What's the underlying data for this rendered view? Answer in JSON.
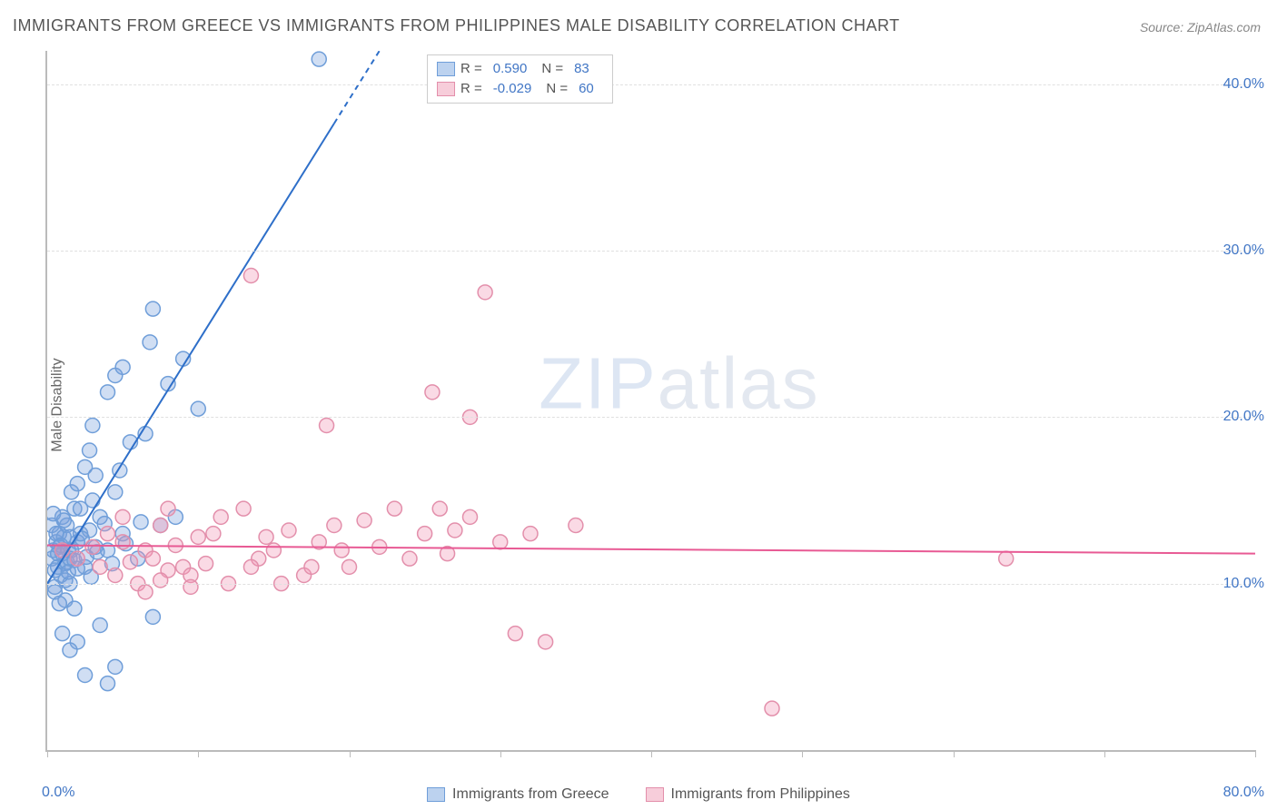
{
  "title": "IMMIGRANTS FROM GREECE VS IMMIGRANTS FROM PHILIPPINES MALE DISABILITY CORRELATION CHART",
  "source": "Source: ZipAtlas.com",
  "watermark": {
    "left": "ZIP",
    "right": "atlas"
  },
  "ylabel": "Male Disability",
  "chart": {
    "type": "scatter-with-trend",
    "background_color": "#ffffff",
    "grid_color": "#e0e0e0",
    "axis_color": "#bbbbbb",
    "label_color": "#666666",
    "tick_label_color": "#4176c5",
    "marker_radius": 8,
    "marker_stroke_width": 1.5,
    "trend_line_width": 2,
    "xlim": [
      0,
      80
    ],
    "ylim": [
      0,
      42
    ],
    "ytick_values": [
      10,
      20,
      30,
      40
    ],
    "ytick_labels": [
      "10.0%",
      "20.0%",
      "30.0%",
      "40.0%"
    ],
    "xtick_positions": [
      0,
      10,
      20,
      30,
      40,
      50,
      60,
      70,
      80
    ],
    "xtick_labels": {
      "0": "0.0%",
      "80": "80.0%"
    },
    "series": [
      {
        "name": "Immigrants from Greece",
        "fill_color": "rgba(120,160,220,0.35)",
        "stroke_color": "#6f9ed9",
        "trend_color": "#2e6fc9",
        "swatch_fill": "#bcd2ef",
        "swatch_border": "#6f9ed9",
        "R": "0.590",
        "N": "83",
        "trend": {
          "x1": 0,
          "y1": 10,
          "x2": 22,
          "y2": 42,
          "dashed_from_x": 19
        },
        "points": [
          [
            0.3,
            11.5
          ],
          [
            0.4,
            12.0
          ],
          [
            0.5,
            10.8
          ],
          [
            0.5,
            9.5
          ],
          [
            0.6,
            12.5
          ],
          [
            0.7,
            11.0
          ],
          [
            0.8,
            13.0
          ],
          [
            0.8,
            12.2
          ],
          [
            0.9,
            10.5
          ],
          [
            1.0,
            11.8
          ],
          [
            1.0,
            14.0
          ],
          [
            1.1,
            12.8
          ],
          [
            1.2,
            11.2
          ],
          [
            1.2,
            9.0
          ],
          [
            1.3,
            13.5
          ],
          [
            1.4,
            12.0
          ],
          [
            1.5,
            10.0
          ],
          [
            1.5,
            11.5
          ],
          [
            1.6,
            15.5
          ],
          [
            1.8,
            14.5
          ],
          [
            2.0,
            12.5
          ],
          [
            2.0,
            16.0
          ],
          [
            2.2,
            13.0
          ],
          [
            2.5,
            17.0
          ],
          [
            2.5,
            11.0
          ],
          [
            2.8,
            18.0
          ],
          [
            3.0,
            15.0
          ],
          [
            3.0,
            19.5
          ],
          [
            3.2,
            16.5
          ],
          [
            3.5,
            14.0
          ],
          [
            4.0,
            21.5
          ],
          [
            4.0,
            12.0
          ],
          [
            4.5,
            22.5
          ],
          [
            4.5,
            15.5
          ],
          [
            5.0,
            23.0
          ],
          [
            5.0,
            13.0
          ],
          [
            5.5,
            18.5
          ],
          [
            6.0,
            11.5
          ],
          [
            6.5,
            19.0
          ],
          [
            7.0,
            26.5
          ],
          [
            7.5,
            13.5
          ],
          [
            8.0,
            22.0
          ],
          [
            8.5,
            14.0
          ],
          [
            9.0,
            23.5
          ],
          [
            10.0,
            20.5
          ],
          [
            7.0,
            8.0
          ],
          [
            3.5,
            7.5
          ],
          [
            4.0,
            4.0
          ],
          [
            4.5,
            5.0
          ],
          [
            2.0,
            6.5
          ],
          [
            2.5,
            4.5
          ],
          [
            1.0,
            7.0
          ],
          [
            1.5,
            6.0
          ],
          [
            1.8,
            8.5
          ],
          [
            0.8,
            8.8
          ],
          [
            0.5,
            9.8
          ],
          [
            1.2,
            10.2
          ],
          [
            1.5,
            12.8
          ],
          [
            2.2,
            14.5
          ],
          [
            2.8,
            13.2
          ],
          [
            3.2,
            12.2
          ],
          [
            0.3,
            13.5
          ],
          [
            0.4,
            14.2
          ],
          [
            0.6,
            13.0
          ],
          [
            0.7,
            11.8
          ],
          [
            0.9,
            12.3
          ],
          [
            1.1,
            13.8
          ],
          [
            1.3,
            11.3
          ],
          [
            1.4,
            10.7
          ],
          [
            1.6,
            12.0
          ],
          [
            1.8,
            11.4
          ],
          [
            2.0,
            10.9
          ],
          [
            2.3,
            12.7
          ],
          [
            2.6,
            11.6
          ],
          [
            2.9,
            10.4
          ],
          [
            3.3,
            11.9
          ],
          [
            3.8,
            13.6
          ],
          [
            4.3,
            11.2
          ],
          [
            5.2,
            12.4
          ],
          [
            6.2,
            13.7
          ],
          [
            18.0,
            41.5
          ],
          [
            4.8,
            16.8
          ],
          [
            6.8,
            24.5
          ]
        ]
      },
      {
        "name": "Immigrants from Philippines",
        "fill_color": "rgba(240,150,180,0.35)",
        "stroke_color": "#e38fab",
        "trend_color": "#e85a94",
        "swatch_fill": "#f7cdda",
        "swatch_border": "#e38fab",
        "R": "-0.029",
        "N": "60",
        "trend": {
          "x1": 0,
          "y1": 12.3,
          "x2": 80,
          "y2": 11.8
        },
        "points": [
          [
            1.0,
            12.0
          ],
          [
            2.0,
            11.5
          ],
          [
            3.0,
            12.2
          ],
          [
            3.5,
            11.0
          ],
          [
            4.0,
            13.0
          ],
          [
            4.5,
            10.5
          ],
          [
            5.0,
            12.5
          ],
          [
            5.5,
            11.3
          ],
          [
            6.0,
            10.0
          ],
          [
            6.5,
            12.0
          ],
          [
            7.0,
            11.5
          ],
          [
            7.5,
            13.5
          ],
          [
            8.0,
            10.8
          ],
          [
            8.5,
            12.3
          ],
          [
            9.0,
            11.0
          ],
          [
            9.5,
            10.5
          ],
          [
            10.0,
            12.8
          ],
          [
            10.5,
            11.2
          ],
          [
            11.0,
            13.0
          ],
          [
            12.0,
            10.0
          ],
          [
            13.0,
            14.5
          ],
          [
            14.0,
            11.5
          ],
          [
            15.0,
            12.0
          ],
          [
            16.0,
            13.2
          ],
          [
            17.0,
            10.5
          ],
          [
            18.0,
            12.5
          ],
          [
            19.0,
            13.5
          ],
          [
            20.0,
            11.0
          ],
          [
            21.0,
            13.8
          ],
          [
            22.0,
            12.2
          ],
          [
            23.0,
            14.5
          ],
          [
            24.0,
            11.5
          ],
          [
            25.0,
            13.0
          ],
          [
            26.0,
            14.5
          ],
          [
            27.0,
            13.2
          ],
          [
            28.0,
            20.0
          ],
          [
            29.0,
            27.5
          ],
          [
            30.0,
            12.5
          ],
          [
            31.0,
            7.0
          ],
          [
            32.0,
            13.0
          ],
          [
            33.0,
            6.5
          ],
          [
            35.0,
            13.5
          ],
          [
            28.0,
            14.0
          ],
          [
            26.5,
            11.8
          ],
          [
            18.5,
            19.5
          ],
          [
            13.5,
            28.5
          ],
          [
            25.5,
            21.5
          ],
          [
            48.0,
            2.5
          ],
          [
            63.5,
            11.5
          ],
          [
            5.0,
            14.0
          ],
          [
            8.0,
            14.5
          ],
          [
            11.5,
            14.0
          ],
          [
            13.5,
            11.0
          ],
          [
            15.5,
            10.0
          ],
          [
            17.5,
            11.0
          ],
          [
            19.5,
            12.0
          ],
          [
            6.5,
            9.5
          ],
          [
            7.5,
            10.2
          ],
          [
            9.5,
            9.8
          ],
          [
            14.5,
            12.8
          ]
        ]
      }
    ]
  }
}
